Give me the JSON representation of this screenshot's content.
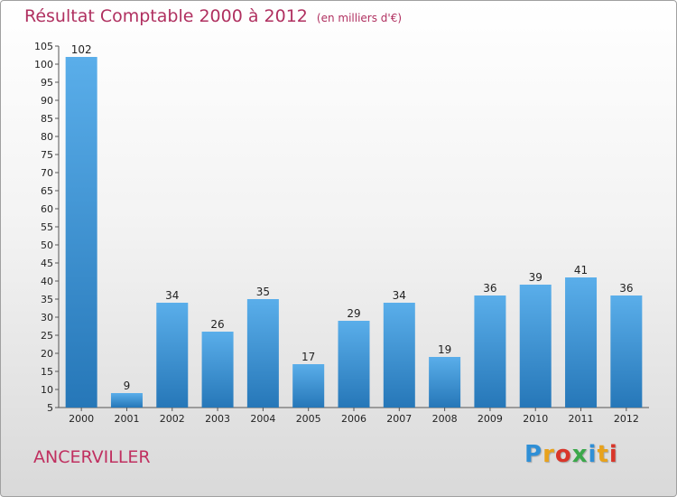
{
  "chart_data": {
    "type": "bar",
    "title": "Résultat Comptable 2000 à 2012",
    "subtitle": "(en milliers d'€)",
    "xlabel": "",
    "ylabel": "",
    "categories": [
      "2000",
      "2001",
      "2002",
      "2003",
      "2004",
      "2005",
      "2006",
      "2007",
      "2008",
      "2009",
      "2010",
      "2011",
      "2012"
    ],
    "values": [
      102,
      9,
      34,
      26,
      35,
      17,
      29,
      34,
      19,
      36,
      39,
      41,
      36
    ],
    "ylim": [
      5,
      105
    ],
    "yticks": [
      5,
      10,
      15,
      20,
      25,
      30,
      35,
      40,
      45,
      50,
      55,
      60,
      65,
      70,
      75,
      80,
      85,
      90,
      95,
      100,
      105
    ],
    "grid": false,
    "bar_color": "#3f97d8"
  },
  "footer": {
    "town": "ANCERVILLER",
    "logo_letters": [
      "P",
      "r",
      "o",
      "x",
      "i",
      "t",
      "i"
    ]
  }
}
